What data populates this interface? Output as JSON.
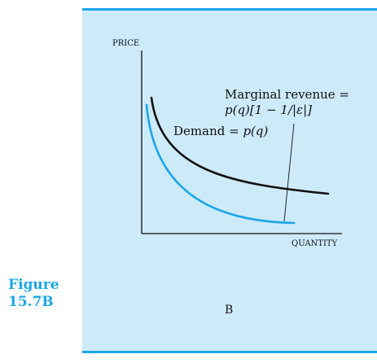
{
  "figure": {
    "label_line1": "Figure",
    "label_line2": "15.7B",
    "panel_letter": "B"
  },
  "colors": {
    "accent": "#1ba6e6",
    "panel_bg": "#cdeaf9",
    "demand_curve": "#111111",
    "marginal_revenue_curve": "#1ba6e6"
  },
  "axes": {
    "y_label": "PRICE",
    "x_label": "QUANTITY"
  },
  "curves": {
    "demand": {
      "label_text": "Demand = ",
      "label_math": "p(q)"
    },
    "marginal_revenue": {
      "label_line1": "Marginal revenue =",
      "label_line2": "p(q)[1 − 1/|ε|]"
    }
  }
}
